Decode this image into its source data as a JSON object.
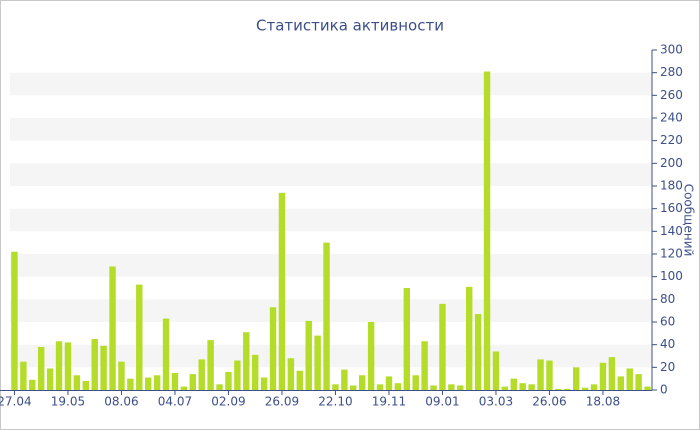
{
  "chart_data": {
    "type": "bar",
    "title": "Статистика активности",
    "y_label": "Сообщений",
    "categories": [
      "27.04",
      null,
      null,
      null,
      null,
      null,
      "19.05",
      null,
      null,
      null,
      null,
      null,
      "08.06",
      null,
      null,
      null,
      null,
      null,
      "04.07",
      null,
      null,
      null,
      null,
      null,
      "02.09",
      null,
      null,
      null,
      null,
      null,
      "26.09",
      null,
      null,
      null,
      null,
      null,
      "22.10",
      null,
      null,
      null,
      null,
      null,
      "19.11",
      null,
      null,
      null,
      null,
      null,
      "09.01",
      null,
      null,
      null,
      null,
      null,
      "03.03",
      null,
      null,
      null,
      null,
      null,
      "26.06",
      null,
      null,
      null,
      null,
      null,
      "18.08",
      null,
      null,
      null,
      null,
      null
    ],
    "values": [
      122,
      25,
      9,
      38,
      19,
      43,
      42,
      13,
      8,
      45,
      39,
      109,
      25,
      10,
      93,
      11,
      13,
      63,
      15,
      3,
      14,
      27,
      44,
      5,
      16,
      26,
      51,
      31,
      11,
      73,
      174,
      28,
      17,
      61,
      48,
      130,
      5,
      18,
      4,
      13,
      60,
      5,
      12,
      6,
      90,
      13,
      43,
      4,
      76,
      5,
      4,
      91,
      67,
      281,
      34,
      3,
      10,
      6,
      5,
      27,
      26,
      1,
      1,
      20,
      2,
      5,
      24,
      29,
      12,
      19,
      14,
      3
    ],
    "color": "#b4dc28",
    "ylim": [
      0,
      300
    ],
    "yticks": [
      0,
      20,
      40,
      60,
      80,
      100,
      120,
      140,
      160,
      180,
      200,
      220,
      240,
      260,
      280,
      300
    ],
    "grid": "bands",
    "y_axis_side": "right"
  }
}
